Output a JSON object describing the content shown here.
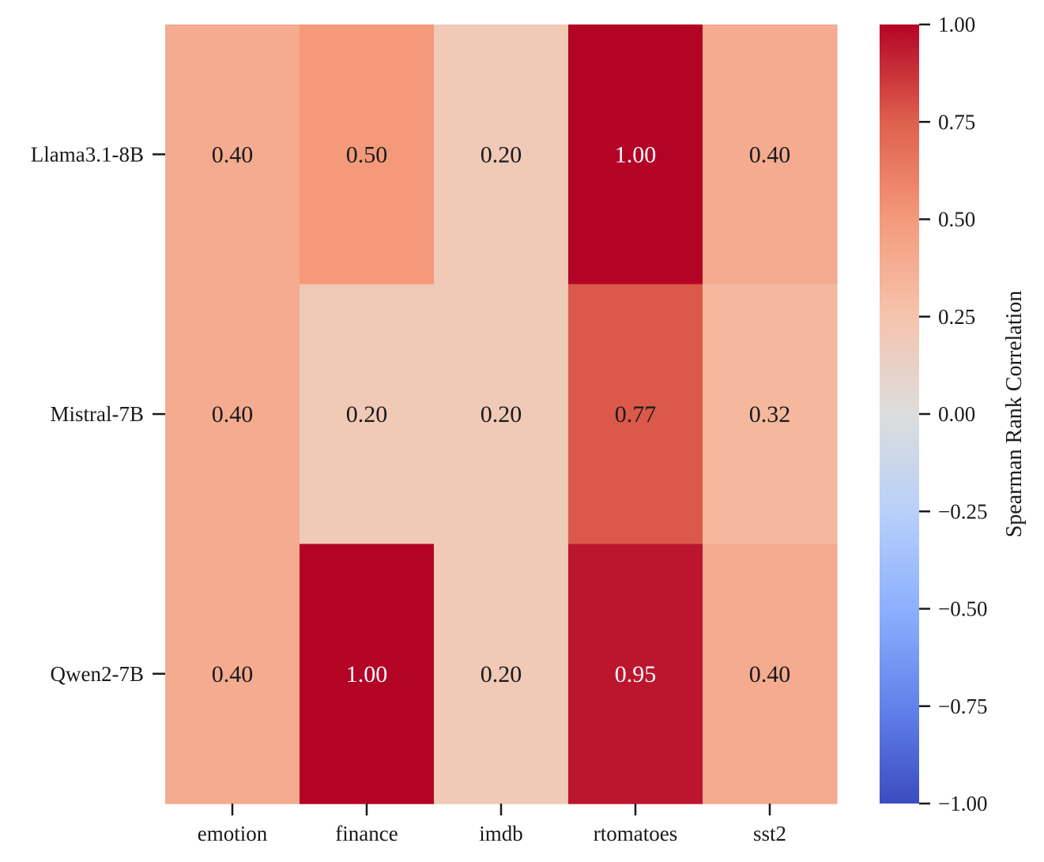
{
  "chart_data": {
    "type": "heatmap",
    "title": "",
    "xlabel": "",
    "ylabel": "",
    "columns": [
      "emotion",
      "finance",
      "imdb",
      "rtomatoes",
      "sst2"
    ],
    "rows": [
      "Llama3.1-8B",
      "Mistral-7B",
      "Qwen2-7B"
    ],
    "values": [
      [
        0.4,
        0.5,
        0.2,
        1.0,
        0.4
      ],
      [
        0.4,
        0.2,
        0.2,
        0.77,
        0.32
      ],
      [
        0.4,
        1.0,
        0.2,
        0.95,
        0.4
      ]
    ],
    "value_format": "2 decimals",
    "colormap": "coolwarm",
    "vmin": -1.0,
    "vmax": 1.0,
    "colorbar": {
      "label": "Spearman Rank Correlation",
      "ticks": [
        1.0,
        0.75,
        0.5,
        0.25,
        0.0,
        -0.25,
        -0.5,
        -0.75,
        -1.0
      ],
      "tick_labels": [
        "1.00",
        "0.75",
        "0.50",
        "0.25",
        "0.00",
        "−0.25",
        "−0.50",
        "−0.75",
        "−1.00"
      ]
    }
  }
}
